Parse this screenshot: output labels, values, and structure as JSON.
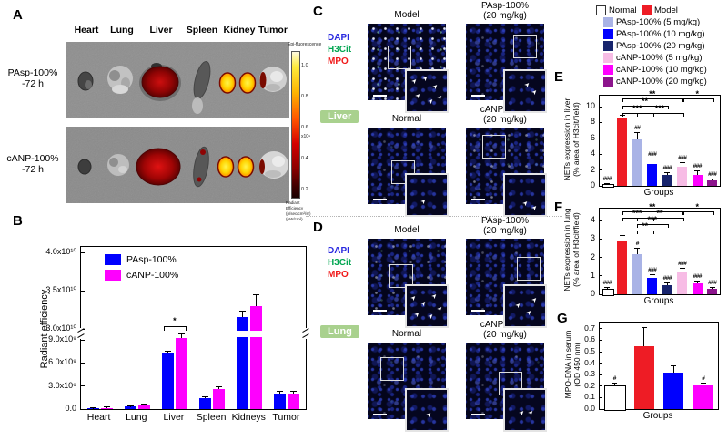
{
  "figure": {
    "panel_labels": {
      "A": "A",
      "B": "B",
      "C": "C",
      "D": "D",
      "E": "E",
      "F": "F",
      "G": "G"
    },
    "panelA": {
      "organ_headers": [
        "Heart",
        "Lung",
        "Liver",
        "Spleen",
        "Kidney",
        "Tumor"
      ],
      "row1_label_line1": "PAsp-100%",
      "row1_label_line2": "-72 h",
      "row2_label_line1": "cANP-100%",
      "row2_label_line2": "-72 h",
      "colorbar": {
        "title": "Epi-fluorescence",
        "ticks": [
          "1.0",
          "0.8",
          "0.6",
          "0.4",
          "0.2"
        ],
        "multiplier": "x10⁹",
        "footer_line1": "Radiant Efficiency",
        "footer_line2": "(p/sec/cm²/sr)",
        "footer_line3": "(μW/cm²)"
      }
    },
    "panelC": {
      "stains": [
        {
          "name": "DAPI",
          "color": "#2a2ae0"
        },
        {
          "name": "H3Cit",
          "color": "#00a550"
        },
        {
          "name": "MPO",
          "color": "#f01818"
        }
      ],
      "organ_tag": "Liver",
      "tag_color": "#a9d18e",
      "titles": {
        "tile1": "Model",
        "tile2_line1": "PAsp-100%",
        "tile2_line2": "(20 mg/kg)",
        "tile3": "Normal",
        "tile4_line1": "cANP-100%",
        "tile4_line2": "(20 mg/kg)"
      }
    },
    "panelD": {
      "stains": [
        {
          "name": "DAPI",
          "color": "#2a2ae0"
        },
        {
          "name": "H3Cit",
          "color": "#00a550"
        },
        {
          "name": "MPO",
          "color": "#f01818"
        }
      ],
      "organ_tag": "Lung",
      "tag_color": "#a9d18e",
      "titles": {
        "tile1": "Model",
        "tile2_line1": "PAsp-100%",
        "tile2_line2": "(20 mg/kg)",
        "tile3": "Normal",
        "tile4_line1": "cANP-100%",
        "tile4_line2": "(20 mg/kg)"
      }
    },
    "legend": {
      "items": [
        {
          "label": "Normal",
          "color": "#ffffff"
        },
        {
          "label": "Model",
          "color": "#ee1c25"
        },
        {
          "label": "PAsp-100% (5 mg/kg)",
          "color": "#a9b3e6"
        },
        {
          "label": "PAsp-100% (10 mg/kg)",
          "color": "#0000fe"
        },
        {
          "label": "PAsp-100% (20 mg/kg)",
          "color": "#17246d"
        },
        {
          "label": "cANP-100% (5 mg/kg)",
          "color": "#f7bce5"
        },
        {
          "label": "cANP-100% (10 mg/kg)",
          "color": "#fe00fe"
        },
        {
          "label": "cANP-100% (20 mg/kg)",
          "color": "#8c148c"
        }
      ]
    }
  },
  "chart_data": [
    {
      "id": "B",
      "type": "bar",
      "ylabel": "Radiant efficiency",
      "xlabel": "",
      "categories": [
        "Heart",
        "Lung",
        "Liver",
        "Spleen",
        "Kidneys",
        "Tumor"
      ],
      "series": [
        {
          "name": "PAsp-100%",
          "color": "#0000fe",
          "values": [
            100000000.0,
            300000000.0,
            7300000000.0,
            1400000000.0,
            31500000000.0,
            2000000000.0
          ],
          "errors": [
            40000000.0,
            80000000.0,
            200000000.0,
            150000000.0,
            800000000.0,
            250000000.0
          ]
        },
        {
          "name": "cANP-100%",
          "color": "#fe00fe",
          "values": [
            150000000.0,
            450000000.0,
            9200000000.0,
            2600000000.0,
            33000000000.0,
            2000000000.0
          ],
          "errors": [
            50000000.0,
            100000000.0,
            500000000.0,
            200000000.0,
            1400000000.0,
            300000000.0
          ]
        }
      ],
      "yticks_lower": [
        {
          "v": 0,
          "label": "0.0"
        },
        {
          "v": 3000000000.0,
          "label": "3.0x10⁹"
        },
        {
          "v": 6000000000.0,
          "label": "6.0x10⁹"
        },
        {
          "v": 9000000000.0,
          "label": "9.0x10⁹"
        }
      ],
      "yticks_upper": [
        {
          "v": 30000000000.0,
          "label": "3.0x10¹⁰"
        },
        {
          "v": 35000000000.0,
          "label": "3.5x10¹⁰"
        },
        {
          "v": 40000000000.0,
          "label": "4.0x10¹⁰"
        }
      ],
      "axis_break": {
        "lower_max": 9300000000.0,
        "upper_min": 30000000000.0,
        "upper_max": 40000000000.0
      },
      "significance": [
        {
          "category": "Liver",
          "label": "*"
        }
      ]
    },
    {
      "id": "E",
      "type": "bar",
      "ylabel_line1": "NETs expression in liver",
      "ylabel_line2": "(% area of H3cit/field)",
      "xlabel": "Groups",
      "categories": [
        "Normal",
        "Model",
        "PAsp-100% (5 mg/kg)",
        "PAsp-100% (10 mg/kg)",
        "PAsp-100% (20 mg/kg)",
        "cANP-100% (5 mg/kg)",
        "cANP-100% (10 mg/kg)",
        "cANP-100% (20 mg/kg)"
      ],
      "values": [
        0.2,
        8.5,
        5.9,
        2.8,
        1.4,
        2.4,
        1.4,
        0.7
      ],
      "errors": [
        0.05,
        0.3,
        0.8,
        0.5,
        0.2,
        0.5,
        0.45,
        0.15
      ],
      "colors": [
        "#ffffff",
        "#ee1c25",
        "#a9b3e6",
        "#0000fe",
        "#17246d",
        "#f7bce5",
        "#fe00fe",
        "#8c148c"
      ],
      "hash_labels": [
        "###",
        "",
        "##",
        "###",
        "###",
        "###",
        "###",
        "###"
      ],
      "ylim": [
        0,
        10
      ],
      "yticks": [
        0,
        2,
        4,
        6,
        8,
        10
      ],
      "brackets": [
        {
          "from": 1,
          "to": 5,
          "label": "**",
          "row": 0
        },
        {
          "from": 5,
          "to": 7,
          "label": "*",
          "row": 0
        },
        {
          "from": 1,
          "to": 4,
          "label": "**",
          "row": 1
        },
        {
          "from": 1,
          "to": 3,
          "label": "***",
          "row": 2
        },
        {
          "from": 2,
          "to": 5,
          "label": "***",
          "row": 2
        }
      ]
    },
    {
      "id": "F",
      "type": "bar",
      "ylabel_line1": "NETs expression in lung",
      "ylabel_line2": "(% area of H3cit/field)",
      "xlabel": "Groups",
      "categories": [
        "Normal",
        "Model",
        "PAsp-100% (5 mg/kg)",
        "PAsp-100% (10 mg/kg)",
        "PAsp-100% (20 mg/kg)",
        "cANP-100% (5 mg/kg)",
        "cANP-100% (10 mg/kg)",
        "cANP-100% (20 mg/kg)"
      ],
      "values": [
        0.3,
        2.9,
        2.2,
        0.9,
        0.5,
        1.2,
        0.6,
        0.3
      ],
      "errors": [
        0.05,
        0.25,
        0.3,
        0.12,
        0.08,
        0.2,
        0.1,
        0.05
      ],
      "colors": [
        "#ffffff",
        "#ee1c25",
        "#a9b3e6",
        "#0000fe",
        "#17246d",
        "#f7bce5",
        "#fe00fe",
        "#8c148c"
      ],
      "hash_labels": [
        "###",
        "",
        "#",
        "###",
        "###",
        "###",
        "###",
        "###"
      ],
      "ylim": [
        0,
        4
      ],
      "yticks": [
        0,
        1,
        2,
        3,
        4
      ],
      "brackets": [
        {
          "from": 1,
          "to": 5,
          "label": "**",
          "row": 0
        },
        {
          "from": 5,
          "to": 7,
          "label": "*",
          "row": 0
        },
        {
          "from": 1,
          "to": 3,
          "label": "***",
          "row": 1
        },
        {
          "from": 2,
          "to": 5,
          "label": "**",
          "row": 1
        },
        {
          "from": 2,
          "to": 4,
          "label": "***",
          "row": 2
        },
        {
          "from": 2,
          "to": 3,
          "label": "**",
          "row": 3
        }
      ]
    },
    {
      "id": "G",
      "type": "bar",
      "ylabel_line1": "MPO-DNA in serum",
      "ylabel_line2": "(OD 450 nm)",
      "xlabel": "Groups",
      "categories": [
        "Normal",
        "Model",
        "PAsp-100%",
        "cANP-100%"
      ],
      "values": [
        0.21,
        0.55,
        0.32,
        0.21
      ],
      "errors": [
        0.015,
        0.16,
        0.055,
        0.015
      ],
      "colors": [
        "#ffffff",
        "#ee1c25",
        "#0000fe",
        "#fe00fe"
      ],
      "hash_labels": [
        "#",
        "",
        "",
        "#"
      ],
      "ylim": [
        0,
        0.7
      ],
      "yticks": [
        "0.0",
        "0.1",
        "0.2",
        "0.3",
        "0.4",
        "0.5",
        "0.6",
        "0.7"
      ],
      "brackets": []
    }
  ]
}
